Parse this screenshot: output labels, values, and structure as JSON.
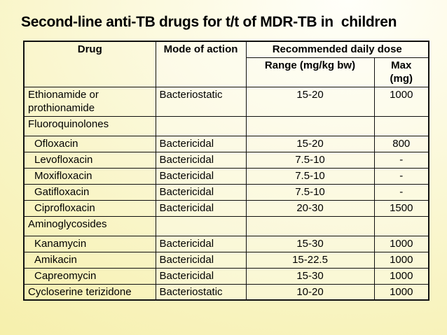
{
  "slide": {
    "title": "Second-line anti-TB drugs for t/t of MDR-TB in  children"
  },
  "colors": {
    "background_highlight": "#fffffa",
    "background_yellow": "#f6efaa",
    "table_border": "#101010",
    "text": "#000000"
  },
  "table": {
    "headers": {
      "drug": "Drug",
      "mode": "Mode of action",
      "dose_group": "Recommended daily dose",
      "range": "Range (mg/kg bw)",
      "max": "Max\n(mg)"
    },
    "rows": [
      {
        "drug": "Ethionamide or prothionamide",
        "mode": "Bacteriostatic",
        "range": "15-20",
        "max": "1000",
        "indent": false,
        "category": false
      },
      {
        "drug": "Fluoroquinolones",
        "mode": "",
        "range": "",
        "max": "",
        "indent": false,
        "category": true
      },
      {
        "drug": "Ofloxacin",
        "mode": "Bactericidal",
        "range": "15-20",
        "max": "800",
        "indent": true,
        "category": false
      },
      {
        "drug": "Levofloxacin",
        "mode": "Bactericidal",
        "range": "7.5-10",
        "max": "-",
        "indent": true,
        "category": false
      },
      {
        "drug": "Moxifloxacin",
        "mode": "Bactericidal",
        "range": "7.5-10",
        "max": "-",
        "indent": true,
        "category": false
      },
      {
        "drug": "Gatifloxacin",
        "mode": "Bactericidal",
        "range": "7.5-10",
        "max": "-",
        "indent": true,
        "category": false
      },
      {
        "drug": "Ciprofloxacin",
        "mode": "Bactericidal",
        "range": "20-30",
        "max": "1500",
        "indent": true,
        "category": false
      },
      {
        "drug": "Aminoglycosides",
        "mode": "",
        "range": "",
        "max": "",
        "indent": false,
        "category": true
      },
      {
        "drug": "Kanamycin",
        "mode": "Bactericidal",
        "range": "15-30",
        "max": "1000",
        "indent": true,
        "category": false
      },
      {
        "drug": "Amikacin",
        "mode": "Bactericidal",
        "range": "15-22.5",
        "max": "1000",
        "indent": true,
        "category": false
      },
      {
        "drug": "Capreomycin",
        "mode": "Bactericidal",
        "range": "15-30",
        "max": "1000",
        "indent": true,
        "category": false
      },
      {
        "drug": "Cycloserine terizidone",
        "mode": "Bacteriostatic",
        "range": "10-20",
        "max": "1000",
        "indent": false,
        "category": false
      }
    ]
  }
}
